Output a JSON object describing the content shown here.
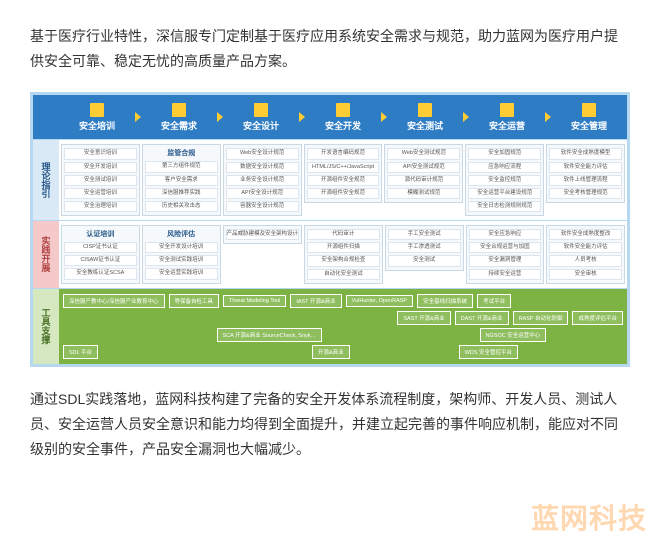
{
  "intro": "基于医疗行业特性，深信服专门定制基于医疗应用系统安全需求与规范，助力蓝网为医疗用户提供安全可靠、稳定无忧的高质量产品方案。",
  "outro": "通过SDL实践落地，蓝网科技构建了完备的安全开发体系流程制度，架构师、开发人员、测试人员、安全运营人员安全意识和能力均得到全面提升，并建立起完善的事件响应机制，能应对不同级别的安全事件，产品安全漏洞也大幅减少。",
  "watermark": "蓝网科技",
  "header": {
    "bg_color": "#2e7cc4",
    "icon_color": "#ffcc33",
    "arrow_color": "#ffcc33",
    "items": [
      {
        "label": "安全培训"
      },
      {
        "label": "安全需求"
      },
      {
        "label": "安全设计"
      },
      {
        "label": "安全开发"
      },
      {
        "label": "安全测试"
      },
      {
        "label": "安全运营"
      },
      {
        "label": "安全管理"
      }
    ]
  },
  "rows": {
    "theory": {
      "label": "理论指引",
      "label_bg": "#d9e9f5",
      "label_color": "#2a5a8a",
      "cols": [
        {
          "title": "",
          "items": [
            "安全意识培训",
            "安全开发培训",
            "安全测试培训",
            "安全运营培训",
            "安全治理培训"
          ]
        },
        {
          "title": "监管合规",
          "items": [
            "第三方组件规范",
            "客户安全需求",
            "深信服推荐实践",
            "历史相关攻击态"
          ]
        },
        {
          "title": "",
          "items": [
            "Web安全设计规范",
            "数据安全设计规范",
            "业务安全设计规范",
            "API安全设计规范",
            "容器安全设计规范"
          ]
        },
        {
          "title": "",
          "items": [
            "开发语言编码规范",
            "HTML/JS/C++/JavaScript",
            "开源组件安全规范",
            "开源组件安全规范"
          ]
        },
        {
          "title": "",
          "items": [
            "Web安全测试规范",
            "API安全测试规范",
            "源代码审计规范",
            "模糊测试规范"
          ]
        },
        {
          "title": "",
          "items": [
            "安全加固规范",
            "应急响应流程",
            "安全监控规范",
            "安全运营平台建设规范",
            "安全日志检测规则规范"
          ]
        },
        {
          "title": "",
          "items": [
            "软件安全成熟度模型",
            "软件安全能力评估",
            "软件上线管理流程",
            "安全考核管理规范"
          ]
        }
      ]
    },
    "practice": {
      "label": "实践开展",
      "label_bg": "#f5c9c9",
      "label_color": "#b04040",
      "cols": [
        {
          "title": "认证培训",
          "items": [
            "CISP证书认证",
            "CISAW证书认证",
            "安全教练认证SCSA"
          ]
        },
        {
          "title": "风险评估",
          "items": [
            "安全开发设计培训",
            "安全测试实践培训",
            "安全运营实践培训"
          ]
        },
        {
          "title": "",
          "items": [
            "产品威胁建模及安全架构设计"
          ]
        },
        {
          "title": "",
          "items": [
            "代码审计",
            "开源组件扫描",
            "安全架构合规检查",
            "自动化安全测试"
          ]
        },
        {
          "title": "",
          "items": [
            "手工安全测试",
            "手工渗透测试",
            "安全测试"
          ]
        },
        {
          "title": "",
          "items": [
            "安全应急响应",
            "安全合规运营与加固",
            "安全漏洞管理",
            "持续安全运营"
          ]
        },
        {
          "title": "",
          "items": [
            "软件安全成熟度整改",
            "软件安全能力评估",
            "人员考核",
            "安全审核"
          ]
        }
      ]
    },
    "tools": {
      "label": "工具支撑",
      "label_bg": "#d5e8c0",
      "label_color": "#4a7028",
      "bg_color": "#7cb342",
      "lines": [
        {
          "label": "",
          "chips": [
            "深信服产教中心/深信服产业教育中心",
            "等保备自检工具",
            "Threat Modeling Tool",
            "IAST  开源&商业",
            "VulHunter, OpenRASP",
            "安全基线扫描系统",
            "考试平台"
          ]
        },
        {
          "label": "",
          "chips": [
            "",
            "",
            "",
            "SAST  开源&商业",
            "DAST  开源&商业",
            "RASP 自动化防御",
            "成熟度评估平台"
          ]
        },
        {
          "label": "",
          "chips": [
            "",
            "",
            "SCA  开源&商业   SourceCheck, Snyk…",
            "",
            "",
            "NGSOC 安全运营中心",
            ""
          ]
        },
        {
          "label": "",
          "chips": [
            "SDL 平台",
            "",
            "",
            "开源&商业",
            "",
            "WDS 安全管控平台",
            ""
          ]
        }
      ]
    }
  },
  "style": {
    "diagram_border": "#b5d8f0",
    "card_border": "#c9d8e5",
    "card_bg": "#f5f9fc",
    "card_title_color": "#2a5a8a"
  }
}
